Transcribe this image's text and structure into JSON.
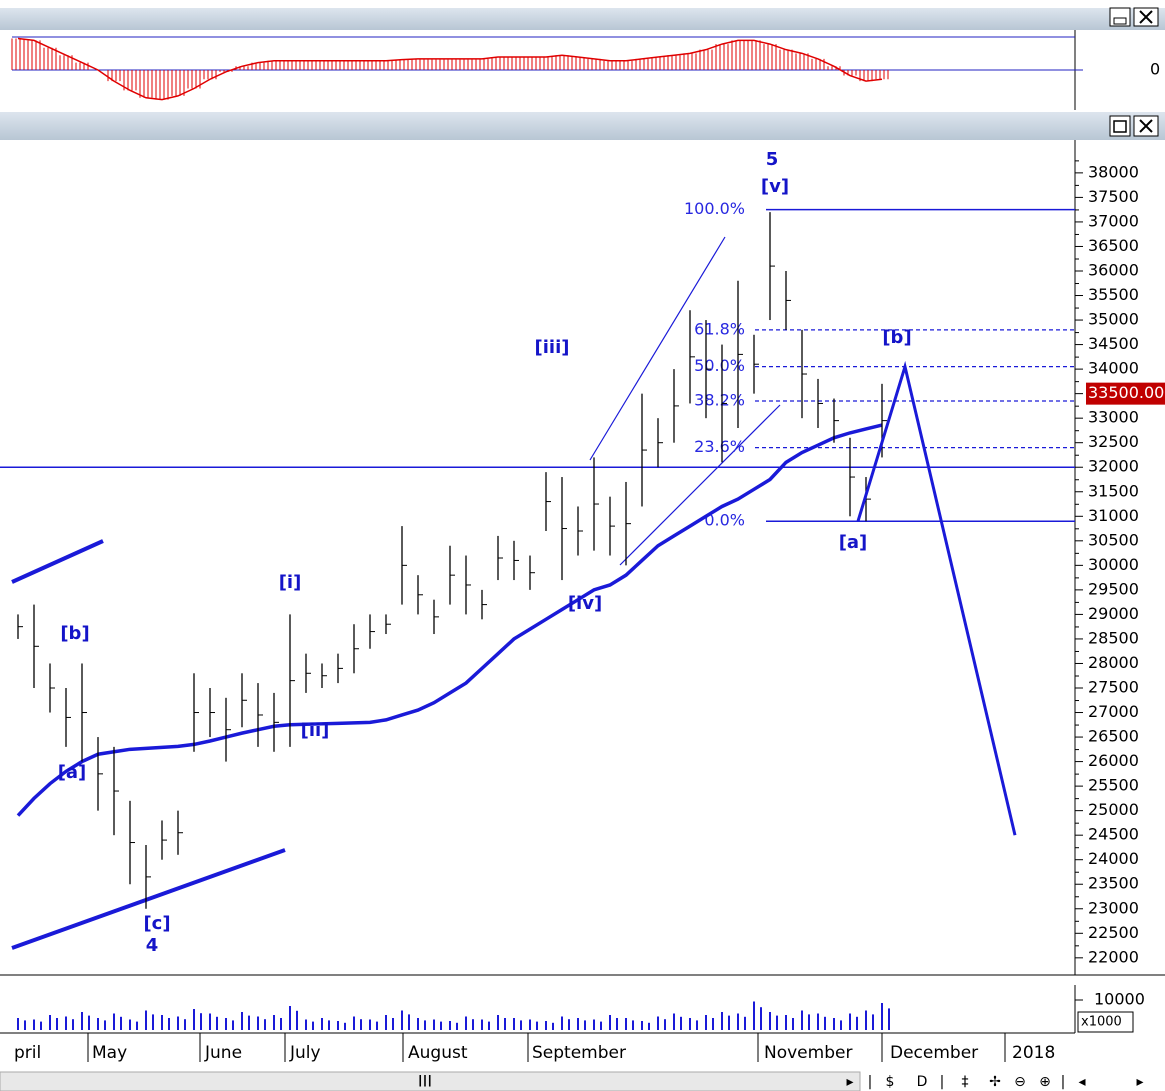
{
  "chart_data": {
    "type": "ohlc",
    "ylim": [
      21650,
      38670
    ],
    "yticks": [
      22000,
      22500,
      23000,
      23500,
      24000,
      24500,
      25000,
      25500,
      26000,
      26500,
      27000,
      27500,
      28000,
      28500,
      29000,
      29500,
      30000,
      30500,
      31000,
      31500,
      32000,
      32500,
      33000,
      33500,
      34000,
      34500,
      35000,
      35500,
      36000,
      36500,
      37000,
      37500,
      38000
    ],
    "months": [
      "pril",
      "May",
      "June",
      "July",
      "August",
      "September",
      "November",
      "December",
      "2018"
    ],
    "high": [
      29000,
      29200,
      28000,
      27500,
      28000,
      26500,
      26300,
      25200,
      24300,
      24800,
      25000,
      27800,
      27500,
      27300,
      27800,
      27600,
      27400,
      29000,
      28200,
      28000,
      28200,
      28800,
      29000,
      29000,
      30800,
      29800,
      29300,
      30400,
      30200,
      29500,
      30600,
      30500,
      30200,
      31900,
      31800,
      31200,
      32200,
      31400,
      31700,
      33500,
      33000,
      34000,
      35200,
      35000,
      34500,
      35800,
      34700,
      37200,
      36000,
      34800,
      33800,
      33400,
      32600,
      31800,
      33700
    ],
    "low": [
      28500,
      27500,
      27000,
      26300,
      26000,
      25000,
      24500,
      23500,
      23000,
      24000,
      24100,
      26200,
      26500,
      26000,
      26700,
      26300,
      26200,
      26300,
      27400,
      27500,
      27600,
      27800,
      28300,
      28600,
      29200,
      29000,
      28600,
      29200,
      29000,
      28900,
      29700,
      29700,
      29500,
      30700,
      29700,
      30200,
      30300,
      30200,
      30000,
      31200,
      32000,
      32500,
      33300,
      33000,
      32100,
      32800,
      33500,
      35000,
      34800,
      33000,
      32800,
      32500,
      31000,
      30900,
      32200
    ],
    "moving_average": {
      "color": "#1a1ad8",
      "values": [
        24900,
        25250,
        25550,
        25800,
        26000,
        26150,
        26200,
        26250,
        26270,
        26290,
        26310,
        26350,
        26420,
        26500,
        26580,
        26650,
        26720,
        26750,
        26760,
        26770,
        26780,
        26790,
        26800,
        26850,
        26950,
        27050,
        27200,
        27400,
        27600,
        27900,
        28200,
        28500,
        28700,
        28900,
        29100,
        29300,
        29500,
        29600,
        29800,
        30100,
        30400,
        30600,
        30800,
        31000,
        31200,
        31350,
        31550,
        31750,
        32100,
        32300,
        32450,
        32600,
        32700,
        32780,
        32860
      ]
    },
    "last_price": {
      "value": 33500,
      "label": "33500.00"
    },
    "hline": 32000,
    "fib_levels": [
      {
        "value": 37250,
        "label": "100.0%"
      },
      {
        "value": 34800,
        "label": "61.8%"
      },
      {
        "value": 34050,
        "label": "50.0%"
      },
      {
        "value": 33350,
        "label": "38.2%"
      },
      {
        "value": 32400,
        "label": "23.6%"
      },
      {
        "value": 30900,
        "label": "0.0%"
      }
    ],
    "projection": [
      30900,
      34050,
      24500
    ],
    "wave_labels": [
      "5",
      "[v]",
      "[iii]",
      "[i]",
      "[b]",
      "[a]",
      "[c]",
      "4",
      "[ii]",
      "[iv]",
      "[b]",
      "[a]"
    ],
    "oscillator": {
      "ylim": [
        -1,
        1
      ],
      "yticks": [
        0
      ],
      "values": [
        0.85,
        0.8,
        0.6,
        0.4,
        0.2,
        0.0,
        -0.3,
        -0.55,
        -0.75,
        -0.8,
        -0.7,
        -0.5,
        -0.25,
        -0.05,
        0.1,
        0.2,
        0.25,
        0.25,
        0.25,
        0.25,
        0.25,
        0.25,
        0.25,
        0.25,
        0.28,
        0.3,
        0.3,
        0.3,
        0.3,
        0.3,
        0.35,
        0.35,
        0.35,
        0.35,
        0.4,
        0.35,
        0.3,
        0.25,
        0.25,
        0.3,
        0.35,
        0.4,
        0.45,
        0.55,
        0.7,
        0.8,
        0.8,
        0.7,
        0.55,
        0.45,
        0.3,
        0.1,
        -0.15,
        -0.3,
        -0.25
      ]
    },
    "volume": {
      "ylim": [
        0,
        15000
      ],
      "yticks": [
        10000
      ],
      "unit": "x1000",
      "values": [
        4000,
        3500,
        5000,
        4500,
        6000,
        4000,
        5500,
        3500,
        6500,
        5000,
        4500,
        7000,
        5500,
        4000,
        6000,
        4500,
        5000,
        8000,
        3500,
        4000,
        3000,
        4500,
        3500,
        5000,
        6500,
        4000,
        3500,
        3000,
        4500,
        3500,
        5000,
        4000,
        3500,
        3000,
        4500,
        4000,
        3500,
        5000,
        4000,
        3000,
        4500,
        5500,
        4000,
        5000,
        6000,
        5500,
        9500,
        6000,
        5000,
        6500,
        5500,
        4000,
        5500,
        6500,
        9000
      ]
    },
    "toolbar": [
      "▸",
      "|",
      "$",
      "D",
      "|",
      "‡",
      "✢",
      "⊖",
      "⊕",
      "|",
      "◂",
      "▸"
    ],
    "scrollbar_label": "III"
  }
}
